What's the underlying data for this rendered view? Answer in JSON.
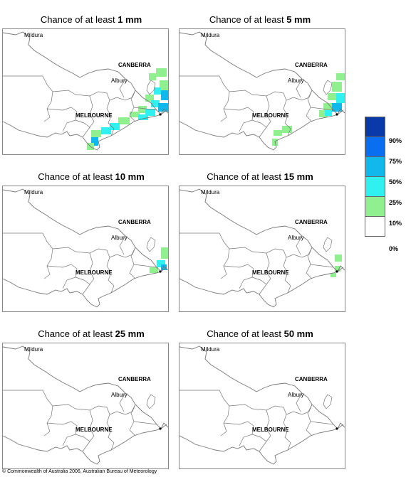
{
  "panels": [
    {
      "prefix": "Chance of at least ",
      "amount": "1 mm",
      "coverage": "wide"
    },
    {
      "prefix": "Chance of at least ",
      "amount": "5 mm",
      "coverage": "medium"
    },
    {
      "prefix": "Chance of at least ",
      "amount": "10 mm",
      "coverage": "small"
    },
    {
      "prefix": "Chance of at least ",
      "amount": "15 mm",
      "coverage": "tiny"
    },
    {
      "prefix": "Chance of at least ",
      "amount": "25 mm",
      "coverage": "none"
    },
    {
      "prefix": "Chance of at least ",
      "amount": "50 mm",
      "coverage": "none"
    }
  ],
  "places": {
    "mildura": "Mildura",
    "canberra": "CANBERRA",
    "albury": "Albury",
    "melbourne": "MELBOURNE"
  },
  "legend": {
    "levels": [
      "90%",
      "75%",
      "50%",
      "25%",
      "10%",
      "0%"
    ],
    "colors": [
      "#0a3aa8",
      "#0a6ef0",
      "#10b8ec",
      "#30f0f0",
      "#90f090",
      "#ffffff"
    ]
  },
  "copyright": "© Commonwealth of Australia 2006, Australian Bureau of Meteorology"
}
